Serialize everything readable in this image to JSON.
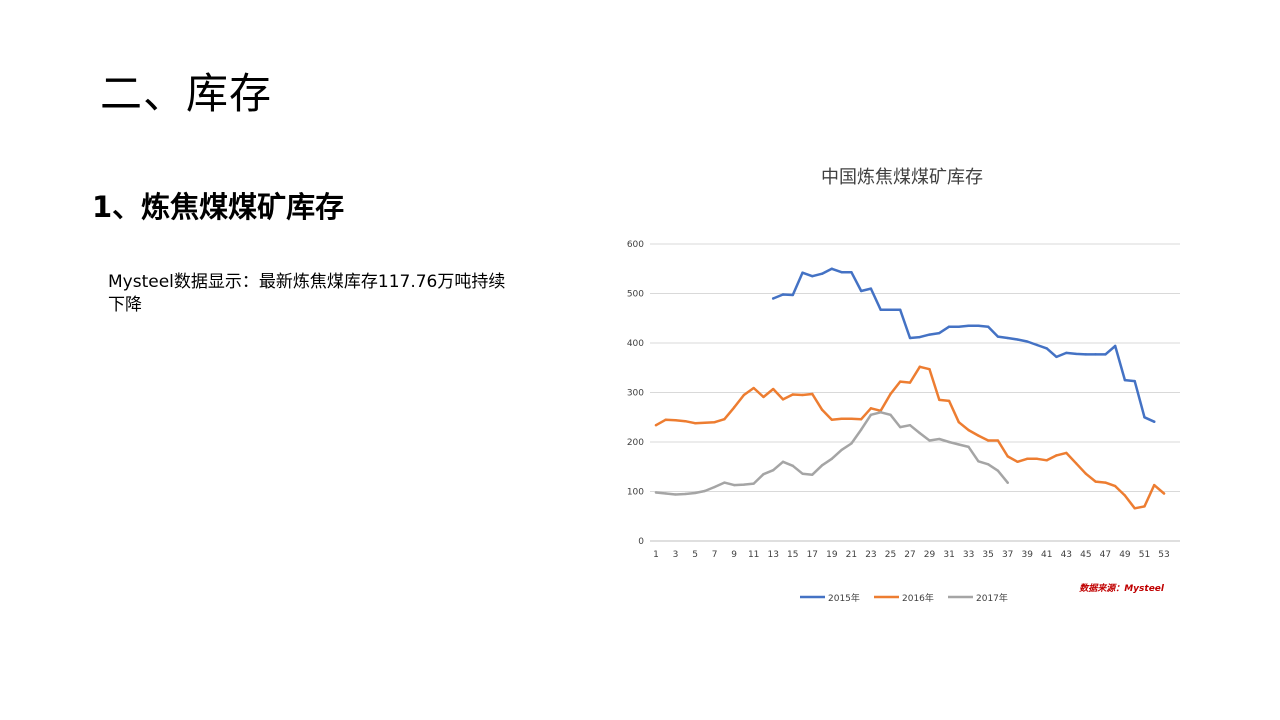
{
  "slide": {
    "title": "二、库存",
    "section_heading": "1、炼焦煤煤矿库存",
    "body_text": "Mysteel数据显示：最新炼焦煤库存117.76万吨持续下降"
  },
  "chart_data": {
    "type": "line",
    "title": "中国炼焦煤煤矿库存",
    "source_note": "数据来源：Mysteel",
    "xlabel": "",
    "ylabel": "",
    "x_ticks": [
      "1",
      "3",
      "5",
      "7",
      "9",
      "11",
      "13",
      "15",
      "17",
      "19",
      "21",
      "23",
      "25",
      "27",
      "29",
      "31",
      "33",
      "35",
      "37",
      "39",
      "41",
      "43",
      "45",
      "47",
      "49",
      "51",
      "53"
    ],
    "y_ticks": [
      "0",
      "100",
      "200",
      "300",
      "400",
      "500",
      "600"
    ],
    "xlim": [
      1,
      53
    ],
    "ylim": [
      0,
      600
    ],
    "grid": "horizontal",
    "legend_position": "bottom",
    "series": [
      {
        "name": "2015年",
        "color": "#4472c4",
        "x": [
          13,
          14,
          15,
          16,
          17,
          18,
          19,
          20,
          21,
          22,
          23,
          24,
          25,
          26,
          27,
          28,
          29,
          30,
          31,
          32,
          33,
          34,
          35,
          36,
          37,
          38,
          39,
          40,
          41,
          42,
          43,
          44,
          45,
          46,
          47,
          48,
          49,
          50,
          51,
          52
        ],
        "values": [
          490,
          498,
          497,
          542,
          535,
          540,
          550,
          543,
          543,
          505,
          510,
          467,
          467,
          467,
          410,
          412,
          417,
          420,
          433,
          433,
          435,
          435,
          433,
          413,
          410,
          407,
          403,
          396,
          389,
          372,
          380,
          378,
          377,
          377,
          377,
          394,
          325,
          323,
          250,
          241
        ]
      },
      {
        "name": "2016年",
        "color": "#ed7d31",
        "x": [
          1,
          2,
          3,
          4,
          5,
          6,
          7,
          8,
          9,
          10,
          11,
          12,
          13,
          14,
          15,
          16,
          17,
          18,
          19,
          20,
          21,
          22,
          23,
          24,
          25,
          26,
          27,
          28,
          29,
          30,
          31,
          32,
          33,
          34,
          35,
          36,
          37,
          38,
          39,
          40,
          41,
          42,
          43,
          44,
          45,
          46,
          47,
          48,
          49,
          50,
          51,
          52,
          53
        ],
        "values": [
          234,
          245,
          244,
          242,
          238,
          239,
          240,
          246,
          270,
          295,
          309,
          291,
          307,
          286,
          296,
          295,
          297,
          265,
          245,
          247,
          247,
          246,
          268,
          263,
          297,
          322,
          320,
          352,
          347,
          285,
          283,
          240,
          224,
          213,
          203,
          203,
          171,
          160,
          166,
          166,
          163,
          173,
          178,
          157,
          136,
          120,
          118,
          111,
          92,
          66,
          70,
          113,
          96
        ]
      },
      {
        "name": "2017年",
        "color": "#a5a5a5",
        "x": [
          1,
          2,
          3,
          4,
          5,
          6,
          7,
          8,
          9,
          10,
          11,
          12,
          13,
          14,
          15,
          16,
          17,
          18,
          19,
          20,
          21,
          22,
          23,
          24,
          25,
          26,
          27,
          28,
          29,
          30,
          31,
          32,
          33,
          34,
          35,
          36,
          37
        ],
        "values": [
          98,
          96,
          94,
          95,
          97,
          101,
          109,
          118,
          113,
          114,
          116,
          135,
          143,
          160,
          152,
          136,
          134,
          153,
          166,
          184,
          197,
          225,
          255,
          260,
          255,
          230,
          234,
          218,
          203,
          206,
          200,
          195,
          190,
          161,
          155,
          142,
          117.76
        ]
      }
    ]
  }
}
